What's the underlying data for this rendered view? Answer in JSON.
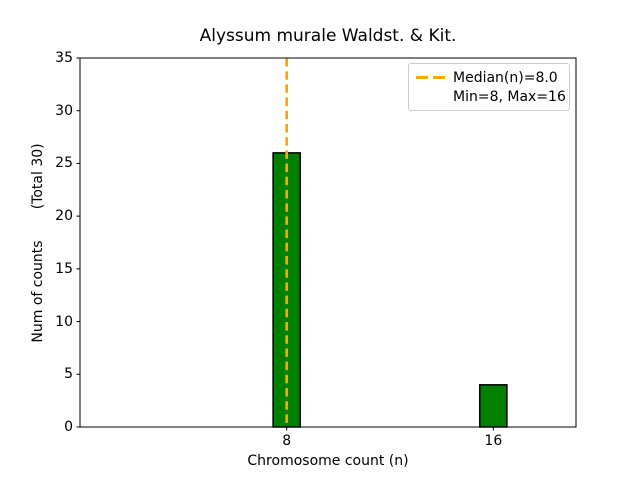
{
  "chart_data": {
    "type": "bar",
    "title": "Alyssum murale Waldst. & Kit.",
    "xlabel": "Chromosome count (n)",
    "ylabel": "Num of counts       (Total 30)",
    "categories": [
      8,
      16
    ],
    "values": [
      26,
      4
    ],
    "total_counts": 30,
    "bar_color": "#008000",
    "bar_edge_color": "#000000",
    "bar_width_units": 1.05,
    "xlim": [
      0,
      19.2
    ],
    "ylim": [
      0,
      35
    ],
    "xticks": [
      8,
      16
    ],
    "yticks": [
      0,
      5,
      10,
      15,
      20,
      25,
      30,
      35
    ],
    "grid": false,
    "median_line": {
      "x": 8,
      "color": "#FFA500",
      "style": "dashed"
    },
    "legend": {
      "position": "upper right",
      "entries": [
        {
          "marker": "dashed-line",
          "color": "#FFA500",
          "label": "Median(n)=8.0"
        },
        {
          "marker": "none",
          "label": "Min=8, Max=16"
        }
      ]
    }
  }
}
